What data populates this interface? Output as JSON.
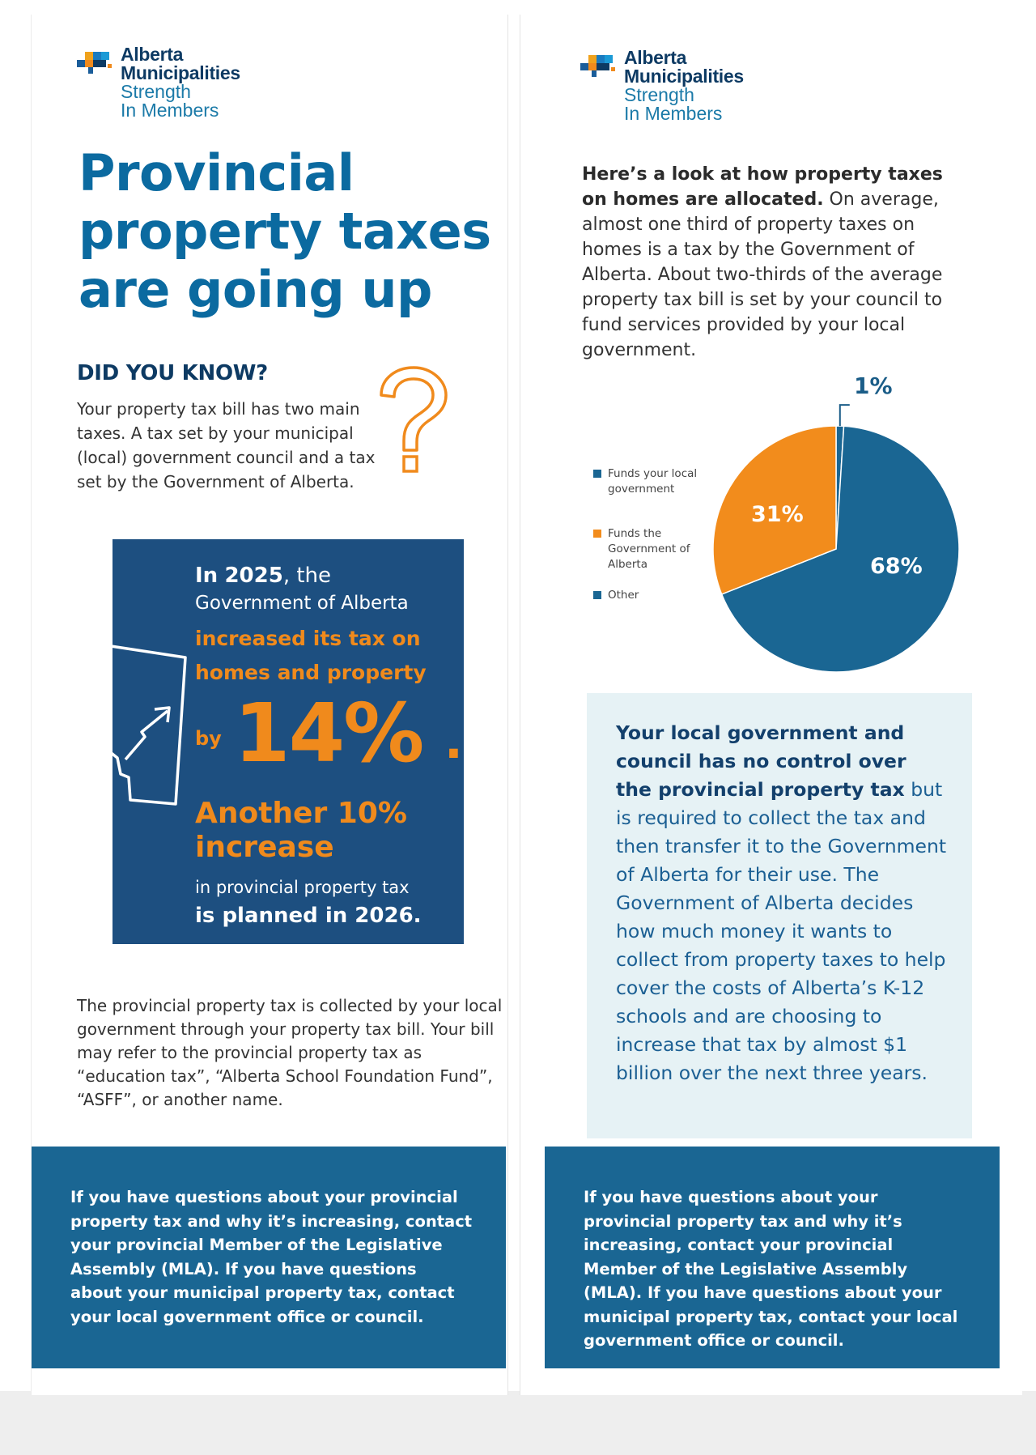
{
  "logo": {
    "line1": "Alberta",
    "line2": "Municipalities",
    "line3": "Strength",
    "line4": "In Members"
  },
  "left": {
    "headline": "Provincial property taxes are going up",
    "did_you_know": "DID YOU KNOW?",
    "did_you_know_body": "Your property tax bill has two main taxes. A tax set by your municipal (local) government council and a tax set by the Government of Alberta.",
    "box": {
      "in_word": "In",
      "year": "2025",
      "after_year": ", the",
      "line2": "Government of Alberta",
      "line3": "increased its tax on",
      "line4": "homes and property",
      "by": "by",
      "percent": "14%",
      "dot": ".",
      "line6": "Another 10%",
      "line7": "increase",
      "line8": "in provincial property tax",
      "line9": "is planned in 2026."
    },
    "collected_text": "The provincial property tax is collected by your local government through your property tax bill. Your bill may refer to the provincial property tax as “education tax”, “Alberta School Foundation Fund”, “ASFF”, or another name."
  },
  "footer_text": "If you have questions about your provincial property tax and why it’s increasing, contact your provincial Member of the Legislative Assembly (MLA). If you have questions about your municipal property tax, contact your local government office or council.",
  "right": {
    "intro_bold": "Here’s a look at how property taxes on homes are allocated.",
    "intro_rest": " On average, almost one third of property taxes on homes is a tax by the Government of Alberta. About two-thirds of the average property tax bill is set by your council to fund services provided by your local government.",
    "lightbox_bold": "Your local government and council has no control over the provincial property tax",
    "lightbox_rest": " but is required to collect the tax and then transfer it to the Government of Alberta for their use. The Government of Alberta decides how much money it wants to collect from property taxes to help cover the costs of Alberta’s K-12 schools and are choosing to increase that tax by almost $1 billion over the next three years."
  },
  "chart_data": {
    "type": "pie",
    "title": "",
    "slices": [
      {
        "label": "Funds your local government",
        "value": 68,
        "display": "68%",
        "color": "#1a6693"
      },
      {
        "label": "Funds the Government of Alberta",
        "value": 31,
        "display": "31%",
        "color": "#f28c1c"
      },
      {
        "label": "Other",
        "value": 1,
        "display": "1%",
        "color": "#1a6693"
      }
    ],
    "legend_position": "left"
  },
  "colors": {
    "navy": "#0d3a63",
    "blue": "#0b6aa0",
    "box_blue": "#1d4f80",
    "footer_blue": "#1a6693",
    "orange": "#f08a1c",
    "light_box": "#e6f2f5"
  }
}
